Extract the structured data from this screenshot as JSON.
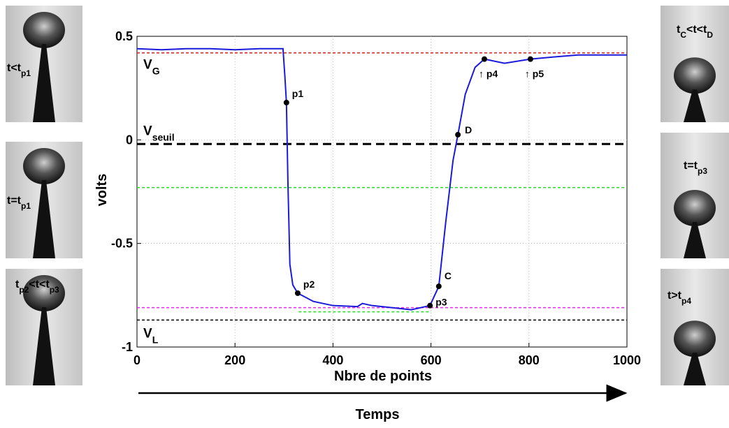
{
  "chart_data": {
    "type": "line",
    "xlabel": "Nbre de points",
    "ylabel": "volts",
    "time_label": "Temps",
    "xlim": [
      0,
      1000
    ],
    "ylim": [
      -1,
      0.5
    ],
    "xticks": [
      0,
      200,
      400,
      600,
      800,
      1000
    ],
    "yticks": [
      -1,
      -0.5,
      0,
      0.5
    ],
    "grid": true,
    "series": [
      {
        "color": "#1a1adc",
        "x": [
          0,
          50,
          100,
          150,
          200,
          250,
          298,
          302,
          305,
          308,
          312,
          318,
          328,
          360,
          400,
          450,
          460,
          480,
          520,
          560,
          598,
          616,
          630,
          645,
          655,
          670,
          690,
          709,
          750,
          803,
          850,
          900,
          1000
        ],
        "values": [
          0.44,
          0.435,
          0.44,
          0.44,
          0.435,
          0.44,
          0.44,
          0.3,
          0.18,
          -0.2,
          -0.6,
          -0.7,
          -0.74,
          -0.78,
          -0.8,
          -0.805,
          -0.79,
          -0.8,
          -0.81,
          -0.82,
          -0.8,
          -0.707,
          -0.4,
          -0.1,
          0.025,
          0.22,
          0.35,
          0.39,
          0.37,
          0.39,
          0.4,
          0.41,
          0.41
        ]
      }
    ],
    "reference_lines": [
      {
        "value": 0.42,
        "color": "#e02020",
        "style": "dashed",
        "label": [
          "V",
          "G"
        ]
      },
      {
        "value": -0.02,
        "color": "#000000",
        "style": "bold-dashed",
        "label": [
          "V",
          "seuil"
        ]
      },
      {
        "value": -0.23,
        "color": "#22dd22",
        "style": "dashed"
      },
      {
        "value": -0.81,
        "color": "#ee22ee",
        "style": "dashed"
      },
      {
        "value": -0.83,
        "color": "#22dd22",
        "style": "dashed",
        "x": [
          330,
          600
        ]
      },
      {
        "value": -0.87,
        "color": "#000000",
        "style": "dashed",
        "label": [
          "V",
          "L"
        ]
      }
    ],
    "points": [
      {
        "label": "p1",
        "x": 305,
        "y": 0.18
      },
      {
        "label": "p2",
        "x": 328,
        "y": -0.74
      },
      {
        "label": "p3",
        "x": 598,
        "y": -0.8
      },
      {
        "label": "C",
        "x": 616,
        "y": -0.707
      },
      {
        "label": "D",
        "x": 655,
        "y": 0.025
      },
      {
        "label": "↑ p4",
        "x": 709,
        "y": 0.39
      },
      {
        "label": "↑ p5",
        "x": 803,
        "y": 0.39
      }
    ],
    "photos": [
      {
        "caption": [
          "t<t",
          "p1"
        ]
      },
      {
        "caption": [
          "t=t",
          "p1"
        ]
      },
      {
        "caption": [
          "t",
          "p2",
          "<t<t",
          "p3"
        ]
      },
      {
        "caption": [
          "t",
          "C",
          "<t<t",
          "D"
        ]
      },
      {
        "caption": [
          "t=t",
          "p3"
        ]
      },
      {
        "caption": [
          "t>t",
          "p4"
        ]
      }
    ]
  }
}
